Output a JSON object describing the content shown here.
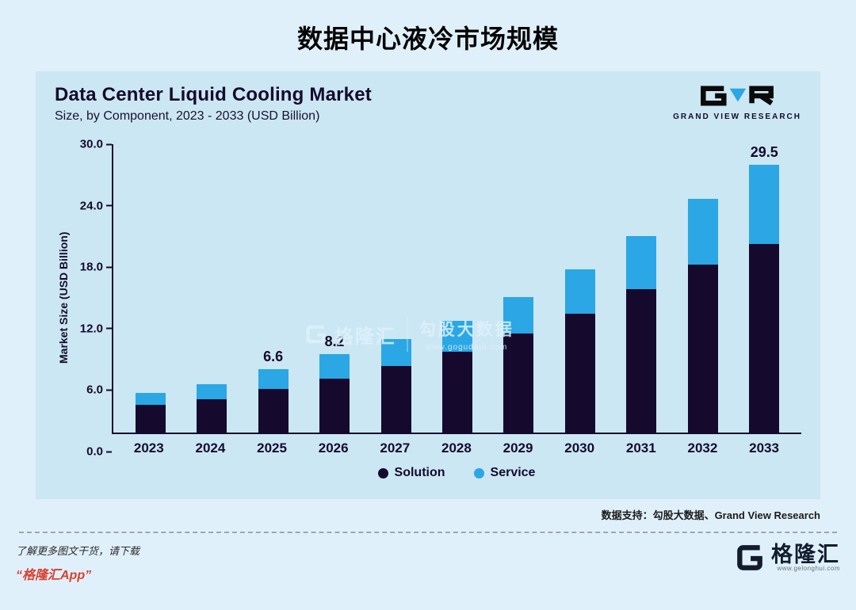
{
  "page": {
    "title": "数据中心液冷市场规模",
    "source_note": "数据支持：勾股大数据、Grand View Research",
    "footer": {
      "line1": "了解更多图文干货，请下载",
      "line2": "“格隆汇App”",
      "brand_name": "格隆汇",
      "brand_url": "www.gelonghui.com"
    }
  },
  "panel": {
    "title": "Data Center Liquid Cooling Market",
    "subtitle": "Size, by Component, 2023 - 2033 (USD Billion)",
    "brand": "GRAND VIEW RESEARCH"
  },
  "watermark": {
    "logo_text": "格隆汇",
    "text": "勾股大数据",
    "url": "www.gogudata.com"
  },
  "colors": {
    "solution": "#150a2e",
    "service": "#2aa7e4",
    "panel_bg": "#cbe7f3",
    "page_bg": "#e0f0fa",
    "app_red": "#d8402f"
  },
  "chart_data": {
    "type": "bar",
    "stacked": true,
    "title": "Data Center Liquid Cooling Market",
    "subtitle": "Size, by Component, 2023 - 2033 (USD Billion)",
    "xlabel": "",
    "ylabel": "Market Size (USD Billion)",
    "ylim": [
      0,
      30
    ],
    "yticks": [
      "0.0",
      "6.0",
      "12.0",
      "18.0",
      "24.0",
      "30.0"
    ],
    "grid": false,
    "legend_position": "bottom",
    "categories": [
      "2023",
      "2024",
      "2025",
      "2026",
      "2027",
      "2028",
      "2029",
      "2030",
      "2031",
      "2032",
      "2033"
    ],
    "series": [
      {
        "name": "Solution",
        "color": "#150a2e",
        "values": [
          2.9,
          3.5,
          4.5,
          5.6,
          6.9,
          8.4,
          10.3,
          12.4,
          14.9,
          17.5,
          20.8
        ]
      },
      {
        "name": "Service",
        "color": "#2aa7e4",
        "values": [
          1.2,
          1.5,
          2.1,
          2.6,
          2.8,
          3.2,
          3.8,
          4.6,
          5.5,
          6.8,
          8.7
        ]
      }
    ],
    "totals": [
      4.1,
      5.0,
      6.6,
      8.2,
      9.7,
      11.6,
      14.1,
      17.0,
      20.4,
      24.3,
      29.5
    ],
    "total_labels": [
      "",
      "",
      "6.6",
      "8.2",
      "",
      "",
      "",
      "",
      "",
      "",
      "29.5"
    ],
    "legend": [
      "Solution",
      "Service"
    ]
  }
}
